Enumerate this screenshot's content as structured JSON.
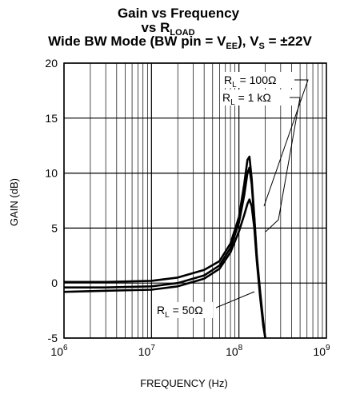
{
  "chart_data": {
    "type": "line",
    "title_line1": "Gain vs Frequency",
    "title_line2_main": "vs R",
    "title_line2_sub": "LOAD",
    "title_line3": {
      "part1": "Wide BW Mode (BW pin = V",
      "sub1": "EE",
      "part2": "), V",
      "sub2": "S",
      "part3": " = ±22V"
    },
    "xlabel": "FREQUENCY (Hz)",
    "ylabel": "GAIN (dB)",
    "x_scale": "log",
    "xlim": [
      1000000,
      1000000000
    ],
    "ylim": [
      -5,
      20
    ],
    "grid": true,
    "x_ticks": [
      {
        "base": "10",
        "exp": "6",
        "value": 1000000
      },
      {
        "base": "10",
        "exp": "7",
        "value": 10000000
      },
      {
        "base": "10",
        "exp": "8",
        "value": 100000000
      },
      {
        "base": "10",
        "exp": "9",
        "value": 1000000000
      }
    ],
    "y_ticks": [
      "-5",
      "0",
      "5",
      "10",
      "15",
      "20"
    ],
    "series": [
      {
        "label_main": "R",
        "label_sub": "L",
        "label_rest": " = 100Ω",
        "x": [
          1000000,
          3000000,
          10000000,
          20000000,
          40000000,
          60000000,
          80000000,
          100000000,
          115000000,
          125000000,
          132000000,
          140000000,
          150000000,
          160000000,
          175000000,
          190000000,
          200000000
        ],
        "y": [
          0.1,
          0.1,
          0.2,
          0.5,
          1.2,
          2.0,
          3.6,
          6.0,
          9.0,
          11.2,
          11.5,
          9.5,
          6.0,
          2.5,
          -0.8,
          -3.5,
          -5.0
        ]
      },
      {
        "label_main": "R",
        "label_sub": "L",
        "label_rest": " = 1 kΩ",
        "x": [
          1000000,
          3000000,
          10000000,
          20000000,
          40000000,
          60000000,
          80000000,
          100000000,
          115000000,
          125000000,
          132000000,
          140000000,
          150000000,
          160000000,
          175000000,
          190000000,
          200000000
        ],
        "y": [
          -0.4,
          -0.4,
          -0.3,
          0.0,
          0.7,
          1.6,
          3.2,
          5.5,
          8.0,
          10.0,
          10.5,
          9.0,
          5.8,
          2.3,
          -1.0,
          -3.7,
          -5.0
        ]
      },
      {
        "label_main": "R",
        "label_sub": "L",
        "label_rest": " = 50Ω",
        "x": [
          1000000,
          3000000,
          10000000,
          20000000,
          40000000,
          60000000,
          80000000,
          100000000,
          115000000,
          125000000,
          132000000,
          140000000,
          150000000,
          160000000,
          175000000,
          190000000,
          200000000
        ],
        "y": [
          -0.8,
          -0.7,
          -0.6,
          -0.3,
          0.4,
          1.3,
          2.8,
          4.7,
          6.2,
          7.2,
          7.6,
          7.0,
          5.0,
          2.0,
          -1.3,
          -3.9,
          -5.0
        ]
      }
    ]
  }
}
